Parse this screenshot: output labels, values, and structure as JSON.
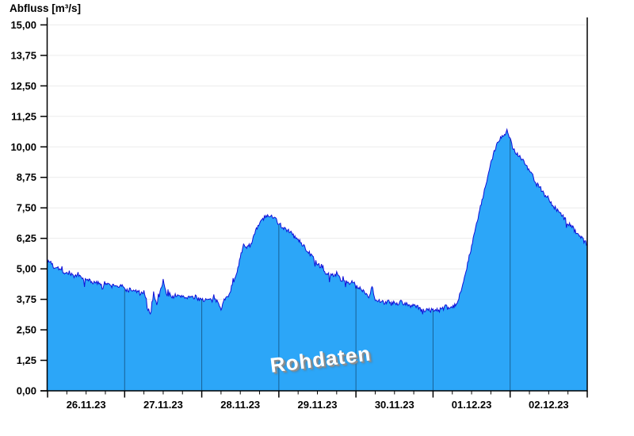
{
  "title": "Abfluss [m³/s]",
  "watermark": "Rohdaten",
  "chart_data": {
    "type": "area",
    "title": "",
    "ylabel": "Abfluss [m³/s]",
    "xlabel": "",
    "ylim": [
      0,
      15
    ],
    "ytick_step": 1.25,
    "ytick_labels": [
      "15,00",
      "13,75",
      "12,50",
      "11,25",
      "10,00",
      "8,75",
      "7,50",
      "6,25",
      "5,00",
      "3,75",
      "2,50",
      "1,25",
      "0,00"
    ],
    "x_day_labels": [
      "26.11.23",
      "27.11.23",
      "28.11.23",
      "29.11.23",
      "30.11.23",
      "01.12.23",
      "02.12.23"
    ],
    "x_unit": "hours",
    "x_span_hours": 168,
    "minor_tick_hours": 6,
    "grid": "on",
    "legend": "none",
    "series_name": "Abfluss Rohdaten",
    "values": [
      5.25,
      5.3,
      5.05,
      5.12,
      4.95,
      4.88,
      4.82,
      4.86,
      4.72,
      4.66,
      4.7,
      4.58,
      4.5,
      4.56,
      4.45,
      4.4,
      4.44,
      4.36,
      4.42,
      4.34,
      4.3,
      4.34,
      4.27,
      4.3,
      4.18,
      4.12,
      4.16,
      4.06,
      4.1,
      3.96,
      4.04,
      3.45,
      3.1,
      4.02,
      3.58,
      4.0,
      4.55,
      3.92,
      3.96,
      3.86,
      3.92,
      3.84,
      3.9,
      3.82,
      3.86,
      3.8,
      3.84,
      3.78,
      3.76,
      3.72,
      3.74,
      3.7,
      3.72,
      3.68,
      3.4,
      3.72,
      3.85,
      4.15,
      4.5,
      4.95,
      5.45,
      5.94,
      5.92,
      5.96,
      6.26,
      6.6,
      6.85,
      7.05,
      7.14,
      7.12,
      7.15,
      7.14,
      6.82,
      6.72,
      6.65,
      6.55,
      6.44,
      6.3,
      6.18,
      6.05,
      5.9,
      5.72,
      5.55,
      5.4,
      5.2,
      5.05,
      4.92,
      4.8,
      4.72,
      4.76,
      4.8,
      4.6,
      4.52,
      4.48,
      4.42,
      4.46,
      4.28,
      4.2,
      4.14,
      4.04,
      3.82,
      4.3,
      3.76,
      3.66,
      3.72,
      3.6,
      3.66,
      3.56,
      3.62,
      3.5,
      3.68,
      3.52,
      3.56,
      3.48,
      3.52,
      3.45,
      3.32,
      3.3,
      3.32,
      3.3,
      3.31,
      3.33,
      3.3,
      3.38,
      3.44,
      3.36,
      3.42,
      3.5,
      3.76,
      4.3,
      4.8,
      5.35,
      5.95,
      6.5,
      7.1,
      7.65,
      8.2,
      8.75,
      9.3,
      9.8,
      10.15,
      10.4,
      10.5,
      10.65,
      10.35,
      9.9,
      9.75,
      9.6,
      9.45,
      9.25,
      9.0,
      8.85,
      8.5,
      8.4,
      8.2,
      8.0,
      7.9,
      7.6,
      7.5,
      7.35,
      7.2,
      7.05,
      6.85,
      6.8,
      6.6,
      6.45,
      6.3,
      6.15,
      6.0
    ],
    "fill_color": "#2CA6F8",
    "line_color": "#1010D8",
    "grid_color": "#ECECEC",
    "axis_color": "#000000",
    "day_line_color": "rgba(10,40,70,0.55)",
    "noise_amplitude": 0.09
  }
}
